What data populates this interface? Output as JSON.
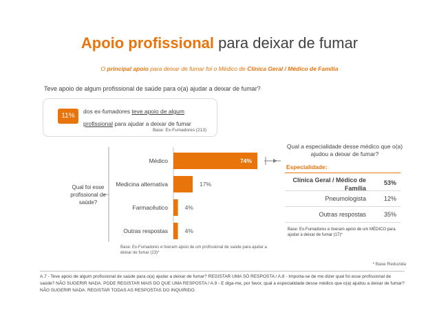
{
  "title": {
    "highlight": "Apoio profissional",
    "rest": "para deixar de fumar"
  },
  "subtitle": {
    "pre": "O",
    "b1": "principal apoio",
    "mid": "para deixar de fumar foi o Médico de",
    "b2": "Clínica Geral / Médico de Família"
  },
  "question": "Teve apoio de algum profissional de saúde para o(a) ajudar a deixar de fumar?",
  "stat": {
    "value": "11%",
    "text_pre": "dos ex-fumadores",
    "text_u1": "teve apoio de algum",
    "text_u2": "profissional",
    "text_post": "para ajudar a deixar de fumar",
    "base": "Base: Ex-Fumadores (213)"
  },
  "chart_data": {
    "type": "bar",
    "orientation": "horizontal",
    "categories": [
      "Médico",
      "Medicina alternativa",
      "Farmacêutico",
      "Outras respostas"
    ],
    "values": [
      74,
      17,
      4,
      4
    ],
    "value_labels": [
      "74%",
      "17%",
      "4%",
      "4%"
    ],
    "xlim": [
      0,
      100
    ],
    "color": "#E8740C"
  },
  "vertical_question": "Qual foi esse profissional de saúde?",
  "chart_base": "Base: Ex-Fumadores e tiveram apoio de um profissional de saúde para ajudar a deixar de fumar (23)*",
  "specialty": {
    "question": "Qual a especialidade desse médico que o(a) ajudou a deixar de fumar?",
    "header": "Especialidade:",
    "rows": [
      {
        "label": "Clínica Geral / Médico de Família",
        "value": "53%"
      },
      {
        "label": "Pneumologista",
        "value": "12%"
      },
      {
        "label": "Outras respostas",
        "value": "35%"
      }
    ],
    "base": "Base: Ex-Fumadores e tiveram apoio de um MÉDICO para ajudar a deixar de fumar (17)*"
  },
  "reduced_base": "* Base Reduzida",
  "footnote": "A.7 - Teve apoio de algum profissional de saúde para o(a) ajudar a deixar de fumar? REGISTAR UMA SÓ RESPOSTA / A.8 - Importa-se de me dizer qual foi esse profissional de saúde? NÃO SUGERIR NADA. PODE REGISTAR MAIS DO QUE UMA RESPOSTA / A.9 - E diga-me, por favor, qual a especialidade desse médico que o(a) ajudou a deixar de fumar? NÃO SUGERIR NADA. REGISTAR TODAS AS RESPOSTAS DO INQUIRIDO."
}
